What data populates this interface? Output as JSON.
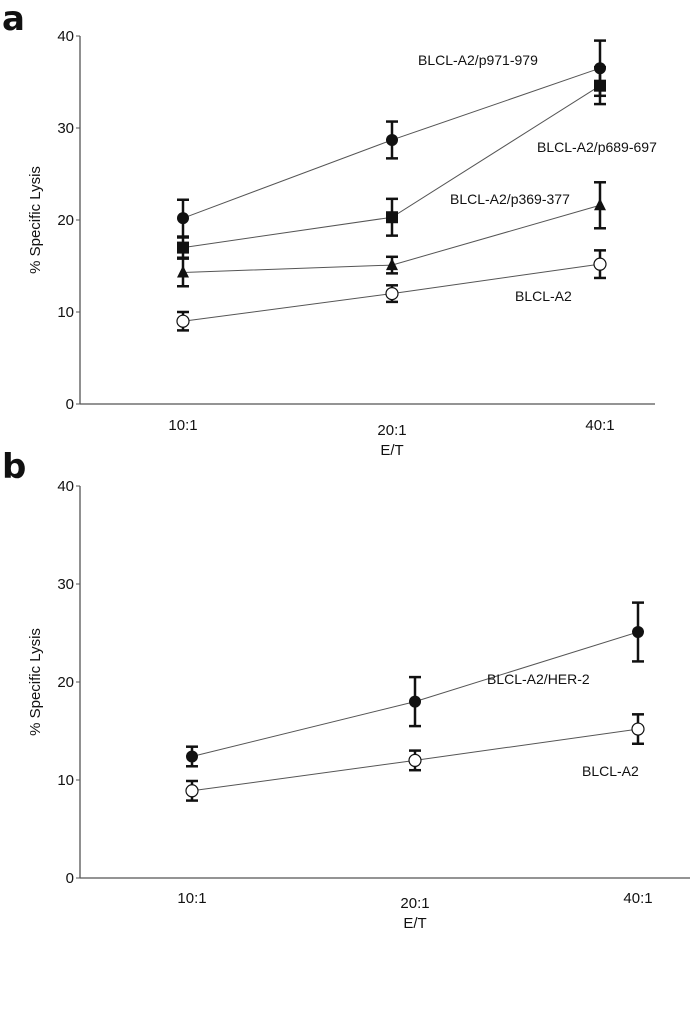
{
  "chart_data": [
    {
      "panel": "a",
      "type": "line",
      "xlabel": "E/T",
      "ylabel": "% Specific Lysis",
      "categories": [
        "10:1",
        "20:1",
        "40:1"
      ],
      "ylim": [
        0,
        40
      ],
      "yticks": [
        "0",
        "10",
        "20",
        "30",
        "40"
      ],
      "grid": false,
      "series": [
        {
          "name": "BLCL-A2/p971-979",
          "marker": "filled-circle",
          "values": [
            20.2,
            28.7,
            36.5
          ],
          "errors": [
            2.0,
            2.0,
            3.0
          ]
        },
        {
          "name": "BLCL-A2/p689-697",
          "marker": "filled-square",
          "values": [
            17.0,
            20.3,
            34.6
          ],
          "errors": [
            1.1,
            2.0,
            2.0
          ]
        },
        {
          "name": "BLCL-A2/p369-377",
          "marker": "filled-triangle",
          "values": [
            14.3,
            15.1,
            21.6
          ],
          "errors": [
            1.5,
            0.9,
            2.5
          ]
        },
        {
          "name": "BLCL-A2",
          "marker": "open-circle",
          "values": [
            9.0,
            12.0,
            15.2
          ],
          "errors": [
            1.0,
            0.9,
            1.5
          ]
        }
      ]
    },
    {
      "panel": "b",
      "type": "line",
      "xlabel": "E/T",
      "ylabel": "% Specific Lysis",
      "categories": [
        "10:1",
        "20:1",
        "40:1"
      ],
      "ylim": [
        0,
        40
      ],
      "yticks": [
        "0",
        "10",
        "20",
        "30",
        "40"
      ],
      "grid": false,
      "series": [
        {
          "name": "BLCL-A2/HER-2",
          "marker": "filled-circle",
          "values": [
            12.4,
            18.0,
            25.1
          ],
          "errors": [
            1.0,
            2.5,
            3.0
          ]
        },
        {
          "name": "BLCL-A2",
          "marker": "open-circle",
          "values": [
            8.9,
            12.0,
            15.2
          ],
          "errors": [
            1.0,
            1.0,
            1.5
          ]
        }
      ]
    }
  ],
  "colors": {
    "ink": "#111111",
    "line": "#555555",
    "open_fill": "#ffffff"
  }
}
